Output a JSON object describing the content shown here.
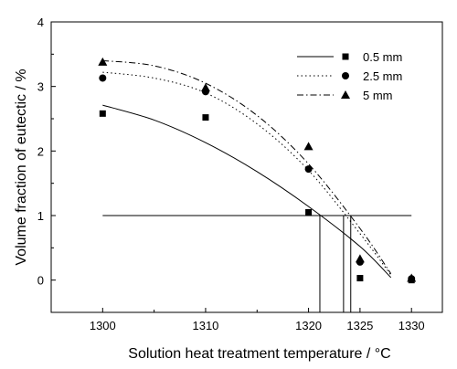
{
  "chart_data": {
    "type": "scatter",
    "title": "",
    "xlabel": "Solution heat treatment temperature / °C",
    "ylabel": "Volume fraction of eutectic / %",
    "xlim": [
      1295,
      1333
    ],
    "ylim": [
      -0.5,
      4
    ],
    "xticks": [
      1300,
      1310,
      1320,
      1325,
      1330
    ],
    "yticks": [
      0,
      1,
      2,
      3,
      4
    ],
    "legend_position": "top-right",
    "grid": false,
    "series": [
      {
        "name": "0.5 mm",
        "marker": "square",
        "line_style": "solid",
        "points": [
          [
            1300,
            2.58
          ],
          [
            1310,
            2.52
          ],
          [
            1320,
            1.05
          ],
          [
            1325,
            0.03
          ],
          [
            1330,
            0.0
          ]
        ],
        "fit_curve": [
          [
            1300,
            2.71
          ],
          [
            1305,
            2.48
          ],
          [
            1310,
            2.13
          ],
          [
            1315,
            1.68
          ],
          [
            1320,
            1.14
          ],
          [
            1325,
            0.52
          ],
          [
            1328,
            0.04
          ]
        ]
      },
      {
        "name": "2.5 mm",
        "marker": "circle",
        "line_style": "dotted",
        "points": [
          [
            1300,
            3.13
          ],
          [
            1310,
            2.92
          ],
          [
            1320,
            1.72
          ],
          [
            1325,
            0.28
          ],
          [
            1330,
            0.02
          ]
        ],
        "fit_curve": [
          [
            1300,
            3.22
          ],
          [
            1305,
            3.13
          ],
          [
            1310,
            2.9
          ],
          [
            1315,
            2.42
          ],
          [
            1320,
            1.7
          ],
          [
            1325,
            0.72
          ],
          [
            1328,
            0.08
          ]
        ]
      },
      {
        "name": "5 mm",
        "marker": "triangle",
        "line_style": "dashdot",
        "points": [
          [
            1300,
            3.38
          ],
          [
            1310,
            2.98
          ],
          [
            1320,
            2.07
          ],
          [
            1325,
            0.33
          ],
          [
            1330,
            0.03
          ]
        ],
        "fit_curve": [
          [
            1300,
            3.4
          ],
          [
            1305,
            3.32
          ],
          [
            1310,
            3.05
          ],
          [
            1315,
            2.55
          ],
          [
            1320,
            1.8
          ],
          [
            1325,
            0.8
          ],
          [
            1328,
            0.1
          ]
        ]
      }
    ],
    "reference_lines": {
      "horizontal_y": 1,
      "horizontal_x_range": [
        1300,
        1330
      ],
      "vertical_x": [
        1321.1,
        1323.4,
        1324.1
      ]
    }
  }
}
